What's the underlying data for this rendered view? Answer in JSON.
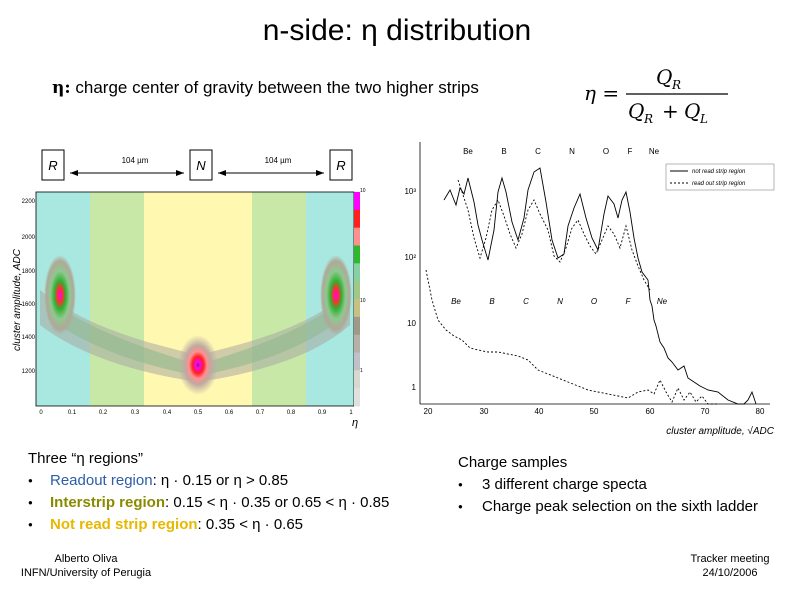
{
  "title": "n-side: η distribution",
  "eta_definition": {
    "symbol": "η:",
    "text": "charge center of gravity between the two higher strips"
  },
  "formula": {
    "lhs": "η =",
    "numerator": "Q",
    "numerator_sub": "R",
    "den_a": "Q",
    "den_a_sub": "R",
    "plus": "+",
    "den_b": "Q",
    "den_b_sub": "L"
  },
  "left_plot": {
    "strip_labels": [
      "R",
      "N",
      "R"
    ],
    "pitch_labels": [
      "104 µm",
      "104 µm"
    ],
    "ylabel": "cluster amplitude, ADC",
    "xlabel": "η",
    "y_ticks": [
      "2200",
      "2000",
      "1800",
      "1600",
      "1400",
      "1200"
    ],
    "x_ticks": [
      "0",
      "0.1",
      "0.2",
      "0.3",
      "0.4",
      "0.5",
      "0.6",
      "0.7",
      "0.8",
      "0.9",
      "1"
    ],
    "colorbar_labels": [
      "10",
      "10",
      "1"
    ],
    "colorbar_colors": [
      "#ff00ff",
      "#ff2020",
      "#ff9090",
      "#2eb82e",
      "#88d0a0",
      "#a0c888",
      "#c8c080",
      "#a09888",
      "#b8b0a8",
      "#c0c0c8",
      "#d8d8d0",
      "#e0e0e0"
    ],
    "region_colors": {
      "readout": "#a8e8e0",
      "interstrip": "#c8e8a8",
      "notread": "#fff8b0"
    }
  },
  "right_plot": {
    "top_labels": [
      "Be",
      "B",
      "C",
      "N",
      "O",
      "F",
      "Ne"
    ],
    "mid_labels": [
      "Be",
      "B",
      "C",
      "N",
      "O",
      "F",
      "Ne"
    ],
    "legend": [
      "not read strip region",
      "read out strip region"
    ],
    "x_ticks": [
      "20",
      "30",
      "40",
      "50",
      "60",
      "70",
      "80"
    ],
    "y_ticks": [
      "10³",
      "10²",
      "10",
      "1"
    ],
    "xlabel": "cluster amplitude, √ADC"
  },
  "regions_text": {
    "heading": "Three “η regions”",
    "bullet": "●",
    "items": [
      {
        "name": "Readout region",
        "rest": ": η · 0.15 or η > 0.85"
      },
      {
        "name": "Interstrip region",
        "rest": ": 0.15 < η · 0.35 or 0.65 < η · 0.85"
      },
      {
        "name": "Not read strip region",
        "rest": ": 0.35 < η · 0.65"
      }
    ]
  },
  "samples_text": {
    "heading": "Charge samples",
    "bullet": "●",
    "items": [
      "3 different charge specta",
      "Charge peak selection on the sixth ladder"
    ]
  },
  "footer": {
    "author_name": "Alberto Oliva",
    "author_affiliation": "INFN/University of Perugia",
    "meeting_name": "Tracker meeting",
    "meeting_date": "24/10/2006"
  }
}
